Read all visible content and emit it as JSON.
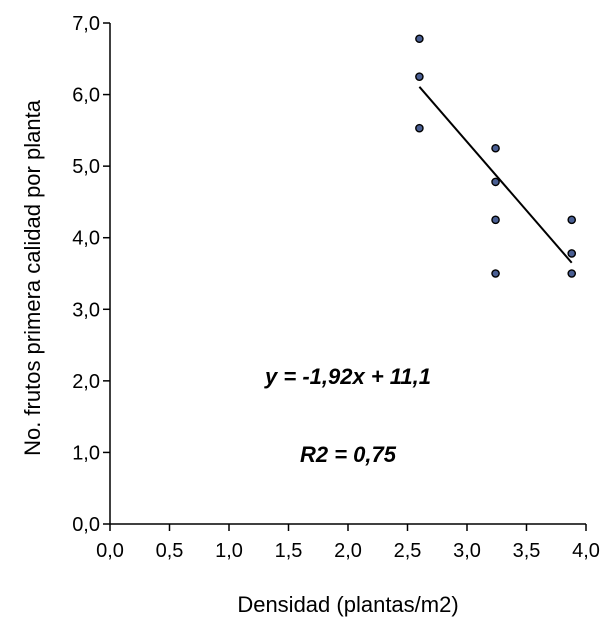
{
  "chart_data": {
    "type": "scatter",
    "title": "",
    "xlabel": "Densidad (plantas/m2)",
    "ylabel": "No. frutos primera calidad por planta",
    "xlim": [
      0,
      4
    ],
    "ylim": [
      0,
      7
    ],
    "x_ticks": [
      "0,0",
      "0,5",
      "1,0",
      "1,5",
      "2,0",
      "2,5",
      "3,0",
      "3,5",
      "4,0"
    ],
    "x_tick_values": [
      0,
      0.5,
      1,
      1.5,
      2,
      2.5,
      3,
      3.5,
      4
    ],
    "y_ticks": [
      "0,0",
      "1,0",
      "2,0",
      "3,0",
      "4,0",
      "5,0",
      "6,0",
      "7,0"
    ],
    "y_tick_values": [
      0,
      1,
      2,
      3,
      4,
      5,
      6,
      7
    ],
    "grid": false,
    "points": [
      {
        "x": 2.6,
        "y": 6.78
      },
      {
        "x": 2.6,
        "y": 6.25
      },
      {
        "x": 2.6,
        "y": 5.53
      },
      {
        "x": 3.24,
        "y": 5.25
      },
      {
        "x": 3.24,
        "y": 4.78
      },
      {
        "x": 3.24,
        "y": 4.25
      },
      {
        "x": 3.24,
        "y": 3.5
      },
      {
        "x": 3.88,
        "y": 4.25
      },
      {
        "x": 3.88,
        "y": 3.78
      },
      {
        "x": 3.88,
        "y": 3.5
      }
    ],
    "trendline": {
      "slope": -1.92,
      "intercept": 11.1,
      "x_range": [
        2.6,
        3.88
      ]
    },
    "annotations": {
      "equation": "y = -1,92x + 11,1",
      "r2": "R2 = 0,75"
    },
    "colors": {
      "point_fill": "#4a5f93",
      "point_stroke": "#000000",
      "line": "#000000"
    }
  }
}
